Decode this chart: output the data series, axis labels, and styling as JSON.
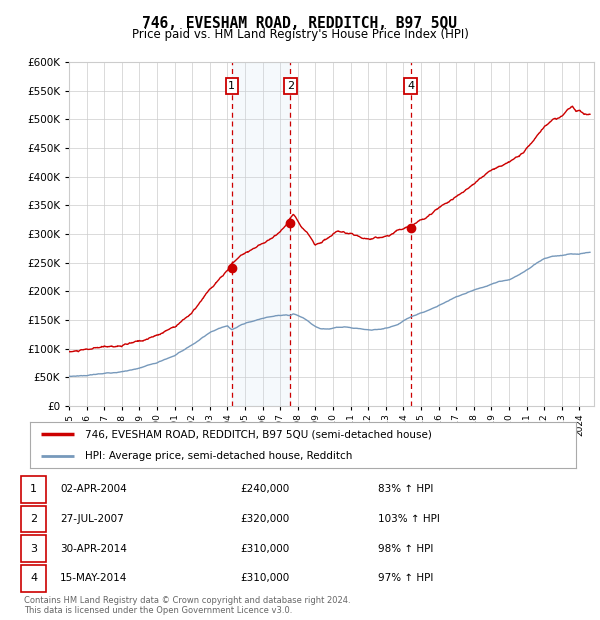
{
  "title": "746, EVESHAM ROAD, REDDITCH, B97 5QU",
  "subtitle": "Price paid vs. HM Land Registry's House Price Index (HPI)",
  "ylim": [
    0,
    600000
  ],
  "yticks": [
    0,
    50000,
    100000,
    150000,
    200000,
    250000,
    300000,
    350000,
    400000,
    450000,
    500000,
    550000,
    600000
  ],
  "xlim_start": 1995.0,
  "xlim_end": 2024.83,
  "background_color": "#ffffff",
  "grid_color": "#cccccc",
  "red_line_color": "#cc0000",
  "blue_line_color": "#7799bb",
  "highlight_fill": "#cce0f0",
  "dashed_line_color": "#cc0000",
  "sale_points": [
    {
      "label": "1",
      "year": 2004.25,
      "price": 240000
    },
    {
      "label": "2",
      "year": 2007.57,
      "price": 320000
    },
    {
      "label": "3",
      "year": 2014.33,
      "price": 310000
    },
    {
      "label": "4",
      "year": 2014.42,
      "price": 310000
    }
  ],
  "legend_entries": [
    "746, EVESHAM ROAD, REDDITCH, B97 5QU (semi-detached house)",
    "HPI: Average price, semi-detached house, Redditch"
  ],
  "table_rows": [
    [
      "1",
      "02-APR-2004",
      "£240,000",
      "83% ↑ HPI"
    ],
    [
      "2",
      "27-JUL-2007",
      "£320,000",
      "103% ↑ HPI"
    ],
    [
      "3",
      "30-APR-2014",
      "£310,000",
      "98% ↑ HPI"
    ],
    [
      "4",
      "15-MAY-2014",
      "£310,000",
      "97% ↑ HPI"
    ]
  ],
  "footer": "Contains HM Land Registry data © Crown copyright and database right 2024.\nThis data is licensed under the Open Government Licence v3.0.",
  "title_fontsize": 10.5,
  "subtitle_fontsize": 8.5,
  "axis_fontsize": 7,
  "legend_fontsize": 7.5,
  "table_fontsize": 7.5,
  "footer_fontsize": 6.0,
  "red_waypoints": [
    [
      1995.0,
      95000
    ],
    [
      1996.0,
      97000
    ],
    [
      1997.0,
      100000
    ],
    [
      1998.0,
      103000
    ],
    [
      1999.0,
      108000
    ],
    [
      2000.0,
      118000
    ],
    [
      2001.0,
      135000
    ],
    [
      2002.0,
      160000
    ],
    [
      2002.5,
      178000
    ],
    [
      2003.0,
      197000
    ],
    [
      2003.5,
      212000
    ],
    [
      2004.0,
      228000
    ],
    [
      2004.25,
      240000
    ],
    [
      2004.8,
      255000
    ],
    [
      2005.3,
      265000
    ],
    [
      2005.8,
      272000
    ],
    [
      2006.3,
      282000
    ],
    [
      2006.8,
      292000
    ],
    [
      2007.3,
      308000
    ],
    [
      2007.57,
      320000
    ],
    [
      2007.75,
      328000
    ],
    [
      2008.0,
      318000
    ],
    [
      2008.5,
      300000
    ],
    [
      2009.0,
      278000
    ],
    [
      2009.3,
      282000
    ],
    [
      2009.8,
      292000
    ],
    [
      2010.2,
      298000
    ],
    [
      2010.7,
      293000
    ],
    [
      2011.2,
      289000
    ],
    [
      2011.7,
      286000
    ],
    [
      2012.2,
      284000
    ],
    [
      2012.7,
      287000
    ],
    [
      2013.2,
      292000
    ],
    [
      2013.7,
      300000
    ],
    [
      2014.25,
      308000
    ],
    [
      2014.33,
      310000
    ],
    [
      2014.42,
      310000
    ],
    [
      2015.0,
      322000
    ],
    [
      2015.5,
      335000
    ],
    [
      2016.0,
      348000
    ],
    [
      2016.5,
      358000
    ],
    [
      2017.0,
      370000
    ],
    [
      2017.5,
      382000
    ],
    [
      2018.0,
      393000
    ],
    [
      2018.5,
      405000
    ],
    [
      2019.0,
      418000
    ],
    [
      2019.5,
      425000
    ],
    [
      2020.0,
      430000
    ],
    [
      2020.5,
      442000
    ],
    [
      2021.0,
      458000
    ],
    [
      2021.5,
      475000
    ],
    [
      2022.0,
      492000
    ],
    [
      2022.5,
      505000
    ],
    [
      2023.0,
      510000
    ],
    [
      2023.3,
      520000
    ],
    [
      2023.6,
      525000
    ],
    [
      2023.8,
      515000
    ],
    [
      2024.0,
      518000
    ],
    [
      2024.3,
      512000
    ],
    [
      2024.6,
      510000
    ]
  ],
  "blue_waypoints": [
    [
      1995.0,
      52000
    ],
    [
      1996.0,
      54000
    ],
    [
      1997.0,
      57000
    ],
    [
      1998.0,
      61000
    ],
    [
      1999.0,
      66000
    ],
    [
      2000.0,
      75000
    ],
    [
      2001.0,
      88000
    ],
    [
      2002.0,
      107000
    ],
    [
      2002.5,
      117000
    ],
    [
      2003.0,
      126000
    ],
    [
      2003.5,
      133000
    ],
    [
      2004.0,
      138000
    ],
    [
      2004.25,
      131000
    ],
    [
      2004.8,
      140000
    ],
    [
      2005.3,
      145000
    ],
    [
      2005.8,
      150000
    ],
    [
      2006.3,
      154000
    ],
    [
      2006.8,
      157000
    ],
    [
      2007.3,
      158000
    ],
    [
      2007.57,
      157000
    ],
    [
      2007.75,
      160000
    ],
    [
      2008.0,
      157000
    ],
    [
      2008.5,
      150000
    ],
    [
      2009.0,
      138000
    ],
    [
      2009.3,
      134000
    ],
    [
      2009.8,
      133000
    ],
    [
      2010.2,
      136000
    ],
    [
      2010.7,
      137000
    ],
    [
      2011.2,
      135000
    ],
    [
      2011.7,
      133000
    ],
    [
      2012.2,
      132000
    ],
    [
      2012.7,
      134000
    ],
    [
      2013.2,
      137000
    ],
    [
      2013.7,
      143000
    ],
    [
      2014.0,
      149000
    ],
    [
      2014.42,
      157000
    ],
    [
      2015.0,
      164000
    ],
    [
      2015.5,
      170000
    ],
    [
      2016.0,
      178000
    ],
    [
      2016.5,
      185000
    ],
    [
      2017.0,
      192000
    ],
    [
      2017.5,
      198000
    ],
    [
      2018.0,
      204000
    ],
    [
      2018.5,
      208000
    ],
    [
      2019.0,
      214000
    ],
    [
      2019.5,
      218000
    ],
    [
      2020.0,
      220000
    ],
    [
      2020.5,
      228000
    ],
    [
      2021.0,
      238000
    ],
    [
      2021.5,
      248000
    ],
    [
      2022.0,
      258000
    ],
    [
      2022.5,
      263000
    ],
    [
      2023.0,
      265000
    ],
    [
      2023.5,
      267000
    ],
    [
      2024.0,
      266000
    ],
    [
      2024.6,
      268000
    ]
  ]
}
